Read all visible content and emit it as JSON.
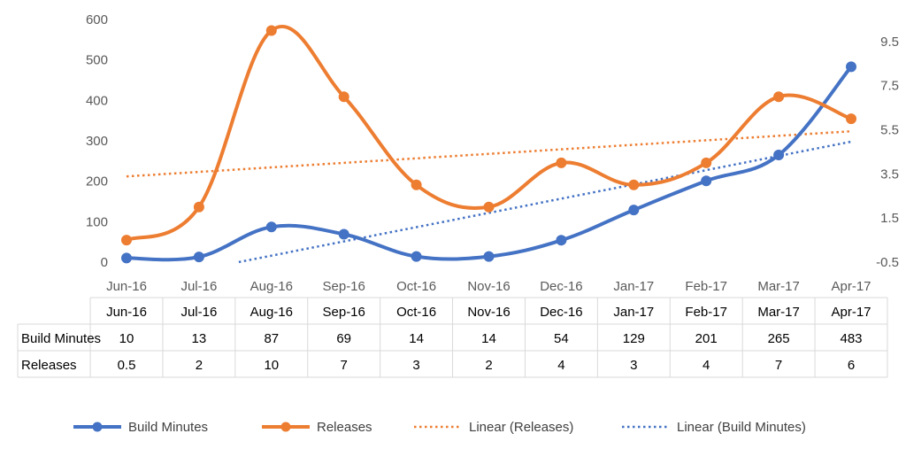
{
  "chart_data": {
    "type": "line",
    "categories": [
      "Jun-16",
      "Jul-16",
      "Aug-16",
      "Sep-16",
      "Oct-16",
      "Nov-16",
      "Dec-16",
      "Jan-17",
      "Feb-17",
      "Mar-17",
      "Apr-17"
    ],
    "primary_axis": {
      "ylim": [
        0,
        600
      ],
      "ticks": [
        "0",
        "100",
        "200",
        "300",
        "400",
        "500",
        "600"
      ]
    },
    "secondary_axis": {
      "ylim": [
        -0.5,
        10.5
      ],
      "ticks": [
        "-0.5",
        "1.5",
        "3.5",
        "5.5",
        "7.5",
        "9.5"
      ]
    },
    "series": [
      {
        "name": "Build Minutes",
        "axis": "primary",
        "color": "#4472C4",
        "values": [
          10,
          13,
          87,
          69,
          14,
          14,
          54,
          129,
          201,
          265,
          483
        ],
        "display": [
          "10",
          "13",
          "87",
          "69",
          "14",
          "14",
          "54",
          "129",
          "201",
          "265",
          "483"
        ]
      },
      {
        "name": "Releases",
        "axis": "secondary",
        "color": "#ED7D31",
        "values": [
          0.5,
          2,
          10,
          7,
          3,
          2,
          4,
          3,
          4,
          7,
          6
        ],
        "display": [
          "0.5",
          "2",
          "10",
          "7",
          "3",
          "2",
          "4",
          "3",
          "4",
          "7",
          "6"
        ]
      }
    ],
    "trendlines": [
      {
        "name": "Linear (Releases)",
        "of": "Releases",
        "color": "#ED7D31"
      },
      {
        "name": "Linear (Build Minutes)",
        "of": "Build Minutes",
        "color": "#4472C4"
      }
    ],
    "legend_position": "bottom",
    "grid": false,
    "data_table": true
  }
}
